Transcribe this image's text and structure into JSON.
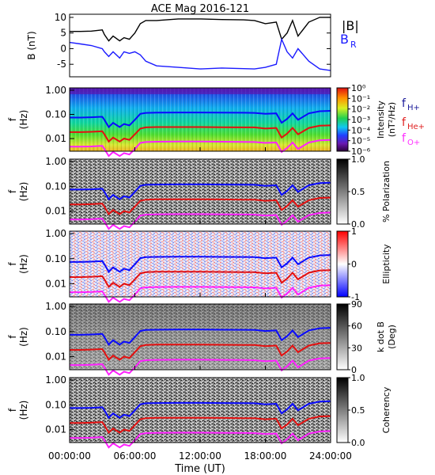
{
  "title": "ACE Mag 2016-121",
  "colors": {
    "B": "#000000",
    "BR": "#1a1aff",
    "fH": "#0a0aff",
    "fHe": "#e41010",
    "fO": "#ff20ff",
    "legend_fH": "#1a1a9a",
    "legend_fHe": "#e02020",
    "legend_fO": "#ff30ff"
  },
  "chart_data": [
    {
      "type": "line",
      "panel": "B",
      "title": "ACE Mag 2016-121",
      "ylabel": "B (nT)",
      "ylim": [
        -9,
        11
      ],
      "yticks": [
        "10",
        "5",
        "0",
        "-5"
      ],
      "legend": [
        "|B|",
        "B_R"
      ],
      "x": [
        0,
        1,
        2,
        3,
        3.2,
        3.6,
        4,
        4.6,
        5,
        5.5,
        6,
        6.5,
        7,
        8,
        10,
        12,
        14,
        16,
        17,
        18,
        19,
        19.5,
        20,
        20.5,
        21,
        22,
        23,
        24
      ],
      "series": [
        {
          "name": "|B|",
          "values": [
            5.5,
            5.5,
            5.6,
            6.0,
            4.5,
            2.5,
            4.0,
            2.5,
            3.5,
            3.0,
            5.0,
            8.0,
            9.0,
            9.0,
            9.5,
            9.5,
            9.3,
            9.2,
            9.0,
            8.0,
            8.5,
            3.0,
            5.0,
            9.0,
            4.0,
            8.5,
            10.0,
            10.0
          ]
        },
        {
          "name": "B_R",
          "values": [
            2.0,
            1.5,
            1.0,
            0.0,
            -1.0,
            -2.5,
            -1.0,
            -3.0,
            -1.0,
            -1.5,
            -1.0,
            -2.0,
            -4.0,
            -5.5,
            -6.0,
            -6.5,
            -6.2,
            -6.4,
            -6.5,
            -6.0,
            -5.0,
            3.0,
            -1.0,
            -3.0,
            0.0,
            -4.0,
            -6.5,
            -7.0
          ]
        }
      ]
    },
    {
      "type": "heatmap",
      "panel": "Intensity",
      "ylabel": "f (Hz)",
      "yscale": "log",
      "yticks": [
        "1.00",
        "0.10",
        "0.01"
      ],
      "colorbar_label": "Intensity (nT²/Hz)",
      "colorbar_ticks": [
        "10⁰",
        "10⁻¹",
        "10⁻²",
        "10⁻³",
        "10⁻⁴",
        "10⁻⁵",
        "10⁻⁶"
      ],
      "legend": [
        "f_H+",
        "f_He+",
        "f_O+"
      ]
    },
    {
      "type": "heatmap",
      "panel": "Polarization",
      "ylabel": "f (Hz)",
      "yscale": "log",
      "yticks": [
        "1.00",
        "0.10",
        "0.01"
      ],
      "colorbar_label": "% Polarization",
      "colorbar_ticks": [
        "1.0",
        "0.5",
        "0.0"
      ]
    },
    {
      "type": "heatmap",
      "panel": "Ellipticity",
      "ylabel": "f (Hz)",
      "yscale": "log",
      "yticks": [
        "1.00",
        "0.10",
        "0.01"
      ],
      "colorbar_label": "Ellipticity",
      "colorbar_ticks": [
        "1",
        "0",
        "-1"
      ]
    },
    {
      "type": "heatmap",
      "panel": "k dot B",
      "ylabel": "f (Hz)",
      "yscale": "log",
      "yticks": [
        "1.00",
        "0.10",
        "0.01"
      ],
      "colorbar_label": "k dot B (Deg)",
      "colorbar_ticks": [
        "90",
        "60",
        "30",
        "0"
      ]
    },
    {
      "type": "heatmap",
      "panel": "Coherency",
      "ylabel": "f (Hz)",
      "yscale": "log",
      "yticks": [
        "1.00",
        "0.10",
        "0.01"
      ],
      "colorbar_label": "Coherency",
      "colorbar_ticks": [
        "1.0",
        "0.5",
        "0.0"
      ],
      "xlabel": "Time (UT)",
      "xticks": [
        "00:00:00",
        "06:00:00",
        "12:00:00",
        "18:00:00",
        "24:00:00"
      ],
      "xlim": [
        0,
        24
      ]
    }
  ],
  "gyro_lines": {
    "x": [
      0,
      1,
      2,
      3,
      3.2,
      3.6,
      4,
      4.6,
      5,
      5.5,
      6,
      6.5,
      7,
      8,
      10,
      12,
      14,
      16,
      17,
      18,
      19,
      19.5,
      20,
      20.5,
      21,
      22,
      23,
      24
    ],
    "fH": [
      0.074,
      0.074,
      0.076,
      0.08,
      0.06,
      0.03,
      0.045,
      0.03,
      0.04,
      0.035,
      0.06,
      0.105,
      0.115,
      0.118,
      0.12,
      0.12,
      0.118,
      0.117,
      0.115,
      0.105,
      0.11,
      0.045,
      0.065,
      0.11,
      0.06,
      0.11,
      0.135,
      0.14
    ],
    "fHe": [
      0.0185,
      0.0185,
      0.019,
      0.02,
      0.015,
      0.0075,
      0.011,
      0.0075,
      0.01,
      0.0088,
      0.015,
      0.026,
      0.029,
      0.03,
      0.03,
      0.03,
      0.0295,
      0.029,
      0.029,
      0.026,
      0.0275,
      0.011,
      0.016,
      0.0275,
      0.015,
      0.0275,
      0.034,
      0.035
    ],
    "fO": [
      0.0046,
      0.0046,
      0.0047,
      0.005,
      0.0037,
      0.0019,
      0.0028,
      0.0019,
      0.0025,
      0.0022,
      0.0037,
      0.0066,
      0.0072,
      0.0074,
      0.0075,
      0.0075,
      0.0074,
      0.0073,
      0.0072,
      0.0066,
      0.0069,
      0.0028,
      0.0041,
      0.0069,
      0.0037,
      0.0069,
      0.0084,
      0.0088
    ]
  }
}
